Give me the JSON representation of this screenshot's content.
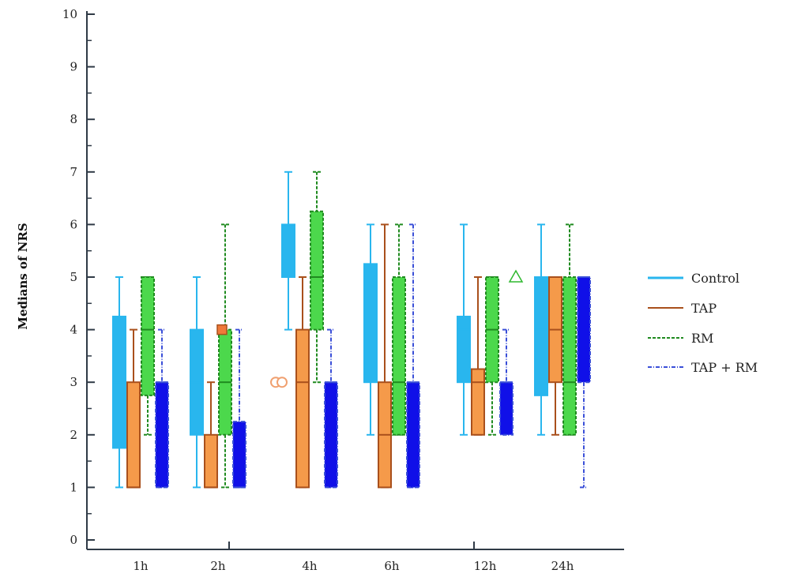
{
  "chart_data": {
    "type": "box",
    "ylabel": "Medians of NRS",
    "xlabel": "",
    "ylim": [
      0,
      10
    ],
    "yticks": [
      "0",
      "1",
      "2",
      "3",
      "4",
      "5",
      "6",
      "7",
      "8",
      "9",
      "10"
    ],
    "categories": [
      "1h",
      "2h",
      "4h",
      "6h",
      "12h",
      "24h"
    ],
    "legend_position": "right",
    "series": [
      {
        "name": "Control",
        "color": "#29b6ee",
        "line_color": "#29b6ee",
        "style": "solid",
        "boxes": [
          {
            "min": 1,
            "q1": 1.75,
            "median": 3,
            "q3": 4.25,
            "max": 5
          },
          {
            "min": 1,
            "q1": 2,
            "median": 3,
            "q3": 4,
            "max": 5
          },
          {
            "min": 4,
            "q1": 5,
            "median": 5,
            "q3": 6,
            "max": 7
          },
          {
            "min": 2,
            "q1": 3,
            "median": 5,
            "q3": 5.25,
            "max": 6
          },
          {
            "min": 2,
            "q1": 3,
            "median": 4,
            "q3": 4.25,
            "max": 6
          },
          {
            "min": 2,
            "q1": 2.75,
            "median": 4,
            "q3": 5,
            "max": 6
          }
        ]
      },
      {
        "name": "TAP",
        "color": "#f59a4a",
        "line_color": "#a9501c",
        "style": "solid",
        "boxes": [
          {
            "min": 1,
            "q1": 1,
            "median": 1,
            "q3": 3,
            "max": 4
          },
          {
            "min": 1,
            "q1": 1,
            "median": 1,
            "q3": 2,
            "max": 3
          },
          {
            "min": 1,
            "q1": 1,
            "median": 3,
            "q3": 4,
            "max": 5
          },
          {
            "min": 1,
            "q1": 1,
            "median": 2,
            "q3": 3,
            "max": 6
          },
          {
            "min": 2,
            "q1": 2,
            "median": 3,
            "q3": 3.25,
            "max": 5
          },
          {
            "min": 2,
            "q1": 3,
            "median": 4,
            "q3": 5,
            "max": 5
          }
        ]
      },
      {
        "name": "RM",
        "color": "#4cd84c",
        "line_color": "#1f8a1f",
        "style": "dashed",
        "boxes": [
          {
            "min": 2,
            "q1": 2.75,
            "median": 4,
            "q3": 5,
            "max": 5
          },
          {
            "min": 1,
            "q1": 2,
            "median": 3,
            "q3": 4,
            "max": 6
          },
          {
            "min": 3,
            "q1": 4,
            "median": 5,
            "q3": 6.25,
            "max": 7
          },
          {
            "min": 2,
            "q1": 2,
            "median": 3,
            "q3": 5,
            "max": 6
          },
          {
            "min": 2,
            "q1": 3,
            "median": 4,
            "q3": 5,
            "max": 5
          },
          {
            "min": 2,
            "q1": 2,
            "median": 3,
            "q3": 5,
            "max": 6
          }
        ]
      },
      {
        "name": "TAP + RM",
        "color": "#1010e8",
        "line_color": "#3a4fd8",
        "style": "dashdot",
        "boxes": [
          {
            "min": 1,
            "q1": 1,
            "median": 3,
            "q3": 3,
            "max": 4
          },
          {
            "min": 1,
            "q1": 1,
            "median": 1,
            "q3": 2.25,
            "max": 4
          },
          {
            "min": 1,
            "q1": 1,
            "median": 3,
            "q3": 3,
            "max": 4
          },
          {
            "min": 1,
            "q1": 1,
            "median": 3,
            "q3": 3,
            "max": 6
          },
          {
            "min": 2,
            "q1": 2,
            "median": 3,
            "q3": 3,
            "max": 4
          },
          {
            "min": 1,
            "q1": 3,
            "median": 5,
            "q3": 5,
            "max": 5
          }
        ]
      }
    ],
    "outliers": [
      {
        "category": "2h",
        "series": "TAP",
        "value": 4,
        "marker": "square"
      },
      {
        "category": "4h",
        "series": "TAP",
        "value": 3,
        "marker": "double-circle"
      },
      {
        "category": "12h",
        "series": "RM",
        "value": 5,
        "marker": "triangle"
      }
    ]
  }
}
